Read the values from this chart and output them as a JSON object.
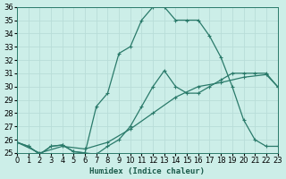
{
  "xlabel": "Humidex (Indice chaleur)",
  "bg_color": "#cceee8",
  "grid_color": "#b8ddd8",
  "line_color": "#2a7a6a",
  "xlim": [
    0,
    23
  ],
  "ylim": [
    25,
    36
  ],
  "yticks": [
    25,
    26,
    27,
    28,
    29,
    30,
    31,
    32,
    33,
    34,
    35,
    36
  ],
  "xticks": [
    0,
    1,
    2,
    3,
    4,
    5,
    6,
    7,
    8,
    9,
    10,
    11,
    12,
    13,
    14,
    15,
    16,
    17,
    18,
    19,
    20,
    21,
    22,
    23
  ],
  "curve_peak_x": [
    0,
    1,
    2,
    3,
    4,
    5,
    6,
    7,
    8,
    9,
    10,
    11,
    12,
    13,
    14,
    15,
    16,
    17,
    18,
    19,
    20,
    21,
    22,
    23
  ],
  "curve_peak_y": [
    25.8,
    25.5,
    24.9,
    25.5,
    25.6,
    25.1,
    25.0,
    28.5,
    29.5,
    32.5,
    33.0,
    35.0,
    36.0,
    36.0,
    35.0,
    35.0,
    35.0,
    33.8,
    32.2,
    30.0,
    27.5,
    26.0,
    25.5,
    25.5
  ],
  "curve_mid_x": [
    0,
    1,
    2,
    3,
    4,
    5,
    6,
    7,
    8,
    9,
    10,
    11,
    12,
    13,
    14,
    15,
    16,
    17,
    18,
    19,
    20,
    21,
    22,
    23
  ],
  "curve_mid_y": [
    25.8,
    25.5,
    24.9,
    25.5,
    25.6,
    25.1,
    25.0,
    24.9,
    25.5,
    26.0,
    27.0,
    28.5,
    30.0,
    31.2,
    30.0,
    29.5,
    29.5,
    30.0,
    30.5,
    31.0,
    31.0,
    31.0,
    31.0,
    30.0
  ],
  "curve_low_x": [
    0,
    2,
    4,
    6,
    8,
    10,
    12,
    14,
    16,
    18,
    20,
    22,
    23
  ],
  "curve_low_y": [
    25.8,
    25.0,
    25.5,
    25.3,
    25.8,
    26.8,
    28.0,
    29.2,
    30.0,
    30.3,
    30.7,
    30.9,
    30.0
  ]
}
